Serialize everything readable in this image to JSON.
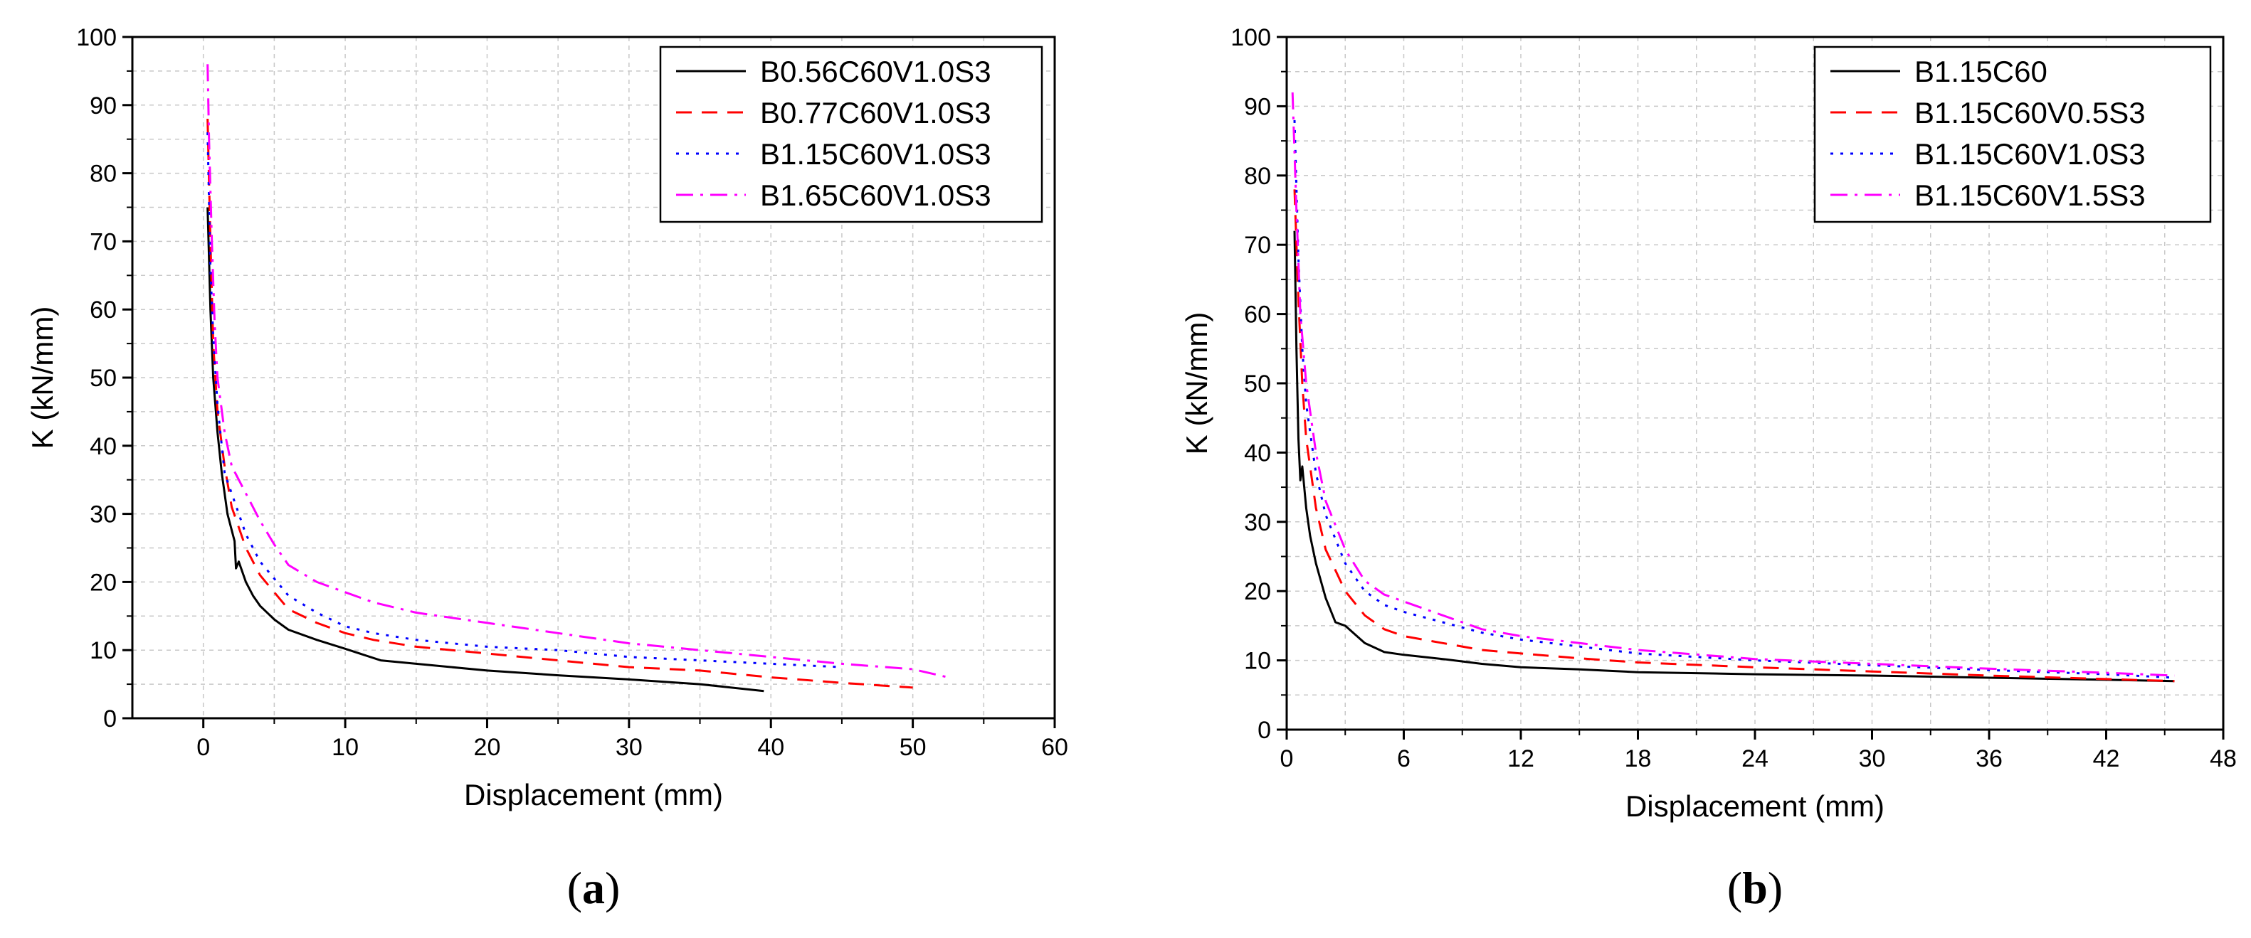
{
  "chart_data": [
    {
      "type": "line",
      "panel_label": "a",
      "xlabel": "Displacement (mm)",
      "ylabel": "K (kN/mm)",
      "xlim": [
        -5,
        60
      ],
      "ylim": [
        0,
        100
      ],
      "xticks": [
        0,
        10,
        20,
        30,
        40,
        50,
        60
      ],
      "yticks": [
        0,
        10,
        20,
        30,
        40,
        50,
        60,
        70,
        80,
        90,
        100
      ],
      "grid": true,
      "legend_position": "top-right",
      "series": [
        {
          "name": "B0.56C60V1.0S3",
          "color": "#000000",
          "dash": "solid",
          "x": [
            0.3,
            0.5,
            0.7,
            1.0,
            1.3,
            1.7,
            2.2,
            2.3,
            2.5,
            3.0,
            3.5,
            4.0,
            5.0,
            6.0,
            8.0,
            10.0,
            12.5,
            15.0,
            20.0,
            25.0,
            30.0,
            35.0,
            39.5
          ],
          "y": [
            75,
            60,
            50,
            42,
            36,
            30,
            26,
            22,
            23,
            20,
            18,
            16.5,
            14.5,
            13,
            11.5,
            10.2,
            8.5,
            8,
            7,
            6.3,
            5.7,
            5,
            4
          ]
        },
        {
          "name": "B0.77C60V1.0S3",
          "color": "#ff0000",
          "dash": "dashed",
          "x": [
            0.3,
            0.5,
            0.7,
            1.0,
            1.5,
            2.0,
            3.0,
            4.0,
            5.0,
            6.0,
            8.0,
            10.0,
            12.0,
            15.0,
            20.0,
            25.0,
            30.0,
            35.0,
            40.0,
            45.0,
            50.0
          ],
          "y": [
            88,
            70,
            55,
            45,
            37,
            31,
            25,
            21,
            18.5,
            16,
            14,
            12.5,
            11.5,
            10.5,
            9.5,
            8.5,
            7.5,
            7,
            6,
            5.2,
            4.5
          ]
        },
        {
          "name": "B1.15C60V1.0S3",
          "color": "#0000ff",
          "dash": "dotted",
          "x": [
            0.3,
            0.5,
            0.7,
            1.0,
            1.5,
            2.0,
            3.0,
            4.0,
            5.0,
            6.0,
            8.0,
            10.0,
            12.0,
            15.0,
            20.0,
            25.0,
            30.0,
            35.0,
            40.0,
            45.0
          ],
          "y": [
            86,
            66,
            56,
            46,
            36,
            33,
            27,
            23,
            20.5,
            18,
            15.5,
            13.5,
            12.5,
            11.5,
            10.5,
            10,
            9,
            8.5,
            8,
            7.5
          ]
        },
        {
          "name": "B1.65C60V1.0S3",
          "color": "#ff00ff",
          "dash": "dashdot",
          "x": [
            0.3,
            0.4,
            0.6,
            0.8,
            1.0,
            1.5,
            2.0,
            3.0,
            4.0,
            5.0,
            6.0,
            8.0,
            10.0,
            12.0,
            15.0,
            20.0,
            25.0,
            30.0,
            35.0,
            40.0,
            45.0,
            50.0,
            52.5
          ],
          "y": [
            96,
            85,
            70,
            58,
            50,
            42,
            37,
            33,
            29,
            25.5,
            22.5,
            20,
            18.5,
            17,
            15.5,
            14,
            12.5,
            11,
            10,
            9,
            8,
            7.2,
            6
          ]
        }
      ]
    },
    {
      "type": "line",
      "panel_label": "b",
      "xlabel": "Displacement (mm)",
      "ylabel": "K (kN/mm)",
      "xlim": [
        0,
        48
      ],
      "ylim": [
        0,
        100
      ],
      "xticks": [
        0,
        6,
        12,
        18,
        24,
        30,
        36,
        42,
        48
      ],
      "yticks": [
        0,
        10,
        20,
        30,
        40,
        50,
        60,
        70,
        80,
        90,
        100
      ],
      "grid": true,
      "legend_position": "top-right",
      "series": [
        {
          "name": "B1.15C60",
          "color": "#000000",
          "dash": "solid",
          "x": [
            0.4,
            0.5,
            0.6,
            0.7,
            0.8,
            1.0,
            1.2,
            1.5,
            2.0,
            2.5,
            3.0,
            4.0,
            5.0,
            6.0,
            8.0,
            10.0,
            12.0,
            15.0,
            18.0,
            24.0,
            30.0,
            36.0,
            42.0,
            45.5
          ],
          "y": [
            72,
            55,
            42,
            36,
            38,
            32,
            28,
            24,
            19,
            15.5,
            15,
            12.5,
            11.2,
            10.8,
            10.2,
            9.5,
            9,
            8.7,
            8.3,
            8,
            7.8,
            7.5,
            7.2,
            7
          ]
        },
        {
          "name": "B1.15C60V0.5S3",
          "color": "#ff0000",
          "dash": "dashed",
          "x": [
            0.4,
            0.6,
            0.8,
            1.0,
            1.5,
            2.0,
            3.0,
            4.0,
            5.0,
            6.0,
            8.0,
            10.0,
            12.0,
            15.0,
            18.0,
            24.0,
            30.0,
            36.0,
            42.0,
            45.5
          ],
          "y": [
            78,
            62,
            50,
            42,
            32,
            26,
            20,
            16.5,
            14.5,
            13.5,
            12.5,
            11.5,
            11,
            10.3,
            9.7,
            9,
            8.4,
            7.8,
            7.3,
            7
          ]
        },
        {
          "name": "B1.15C60V1.0S3",
          "color": "#0000ff",
          "dash": "dotted",
          "x": [
            0.4,
            0.6,
            0.8,
            1.0,
            1.5,
            2.0,
            3.0,
            4.0,
            5.0,
            6.0,
            8.0,
            10.0,
            12.0,
            15.0,
            18.0,
            24.0,
            30.0,
            36.0,
            42.0,
            45.5
          ],
          "y": [
            88,
            68,
            55,
            47,
            37,
            31,
            24,
            20,
            18,
            17,
            15.5,
            14,
            13,
            12,
            11,
            10,
            9.3,
            8.6,
            8,
            7.5
          ]
        },
        {
          "name": "B1.15C60V1.5S3",
          "color": "#ff00ff",
          "dash": "dashdot",
          "x": [
            0.3,
            0.5,
            0.7,
            1.0,
            1.5,
            2.0,
            3.0,
            4.0,
            5.0,
            6.0,
            8.0,
            10.0,
            12.0,
            15.0,
            18.0,
            24.0,
            30.0,
            36.0,
            42.0,
            45.5
          ],
          "y": [
            92,
            75,
            60,
            50,
            40,
            33,
            26,
            21.5,
            19.5,
            18.5,
            16.5,
            14.5,
            13.5,
            12.5,
            11.5,
            10.2,
            9.5,
            8.8,
            8.2,
            7.8
          ]
        }
      ]
    }
  ]
}
